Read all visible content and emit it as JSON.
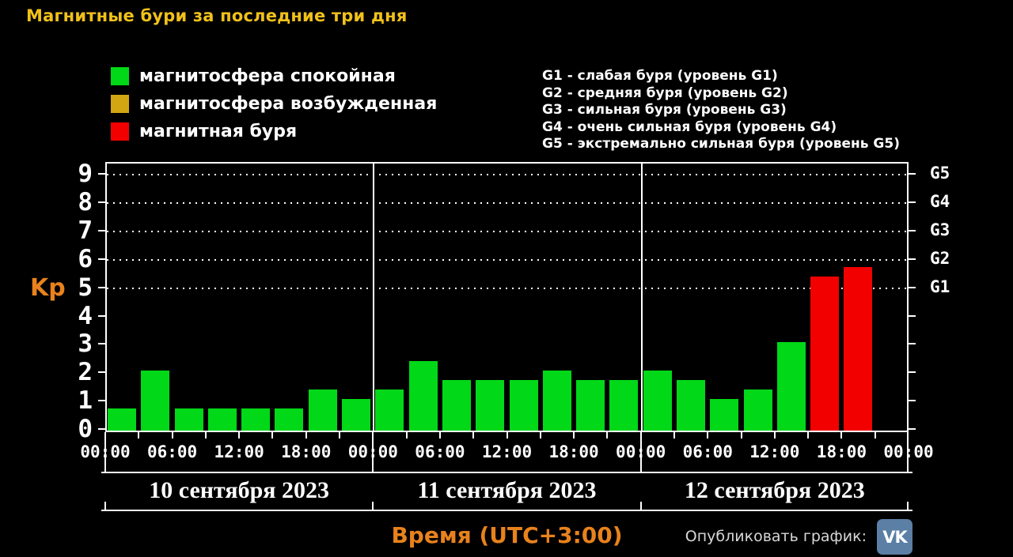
{
  "title": "Магнитные бури за последние три дня",
  "legend": {
    "items": [
      {
        "key": "quiet",
        "label": "магнитосфера спокойная",
        "color": "#00d818"
      },
      {
        "key": "excited",
        "label": "магнитосфера возбужденная",
        "color": "#d2a513"
      },
      {
        "key": "storm",
        "label": "магнитная буря",
        "color": "#f20000"
      }
    ]
  },
  "g_level_descriptions": [
    "G1 - слабая буря (уровень G1)",
    "G2 - средняя буря (уровень G2)",
    "G3 - сильная буря (уровень G3)",
    "G4 - очень сильная буря (уровень G4)",
    "G5 - экстремально сильная буря (уровень G5)"
  ],
  "chart_data": {
    "type": "bar",
    "title": "Магнитные бури за последние три дня",
    "ylabel": "Kp",
    "xlabel": "Время (UTC+3:00)",
    "ylim": [
      0,
      9.5
    ],
    "yticks": [
      0,
      1,
      2,
      3,
      4,
      5,
      6,
      7,
      8,
      9
    ],
    "grid_kp_levels": [
      5,
      6,
      7,
      8,
      9
    ],
    "grid_style": "dotted horizontal lines at storm levels only",
    "legend_position": "top-left",
    "bar_interval_hours": 3,
    "time_labels": [
      "00:00",
      "06:00",
      "12:00",
      "18:00"
    ],
    "closing_time_label": "00:00",
    "g_axis": [
      {
        "kp": 9,
        "label": "G5"
      },
      {
        "kp": 8,
        "label": "G4"
      },
      {
        "kp": 7,
        "label": "G3"
      },
      {
        "kp": 6,
        "label": "G2"
      },
      {
        "kp": 5,
        "label": "G1"
      }
    ],
    "colors": {
      "quiet": "#00d818",
      "excited": "#d2a513",
      "storm": "#f20000"
    },
    "days": [
      {
        "date": "10 сентября 2023",
        "values": [
          0.67,
          2.0,
          0.67,
          0.67,
          0.67,
          0.67,
          1.33,
          1.0
        ],
        "levels": [
          "quiet",
          "quiet",
          "quiet",
          "quiet",
          "quiet",
          "quiet",
          "quiet",
          "quiet"
        ]
      },
      {
        "date": "11 сентября 2023",
        "values": [
          1.33,
          2.33,
          1.67,
          1.67,
          1.67,
          2.0,
          1.67,
          1.67
        ],
        "levels": [
          "quiet",
          "quiet",
          "quiet",
          "quiet",
          "quiet",
          "quiet",
          "quiet",
          "quiet"
        ]
      },
      {
        "date": "12 сентября 2023",
        "values": [
          2.0,
          1.67,
          1.0,
          1.33,
          3.0,
          5.33,
          5.67,
          null
        ],
        "levels": [
          "quiet",
          "quiet",
          "quiet",
          "quiet",
          "quiet",
          "storm",
          "storm",
          null
        ]
      }
    ]
  },
  "footer": {
    "publish_label": "Опубликовать график:",
    "vk_icon_label": "VK"
  }
}
